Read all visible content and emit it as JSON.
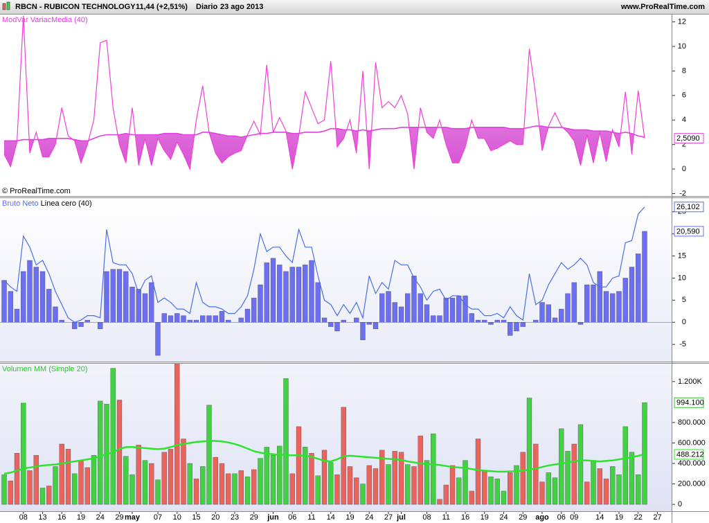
{
  "header": {
    "symbol": "RBCN - RUBICON TECHNOLOGY",
    "quote": "11,44 (+2,51%)",
    "period": "Diario",
    "date": "23 ago 2013",
    "site": "www.ProRealTime.com"
  },
  "watermark": "© ProRealTime.com",
  "chart_data": [
    {
      "type": "line",
      "ylim": [
        -2.2,
        12.6
      ],
      "yticks": [
        12,
        10,
        8,
        6,
        4,
        2,
        0,
        -2
      ],
      "fill_color": "#e34fd5",
      "series": [
        {
          "name": "ModVar",
          "type": "line",
          "color": "#f23fd8",
          "values": [
            1.2,
            0.2,
            2.2,
            12.5,
            1.3,
            3.0,
            1.0,
            1.0,
            2.0,
            5.0,
            2.7,
            2.3,
            0.5,
            2.0,
            4.0,
            10.3,
            10.5,
            5.0,
            2.0,
            0.5,
            5.0,
            0.3,
            2.5,
            0.3,
            2.5,
            1.5,
            0.8,
            2.2,
            1.2,
            0.0,
            4.0,
            6.8,
            3.0,
            1.3,
            0.5,
            1.0,
            1.3,
            1.5,
            2.8,
            3.9,
            2.8,
            8.5,
            3.0,
            4.2,
            3.1,
            0.0,
            2.7,
            6.3,
            5.0,
            3.7,
            4.0,
            8.8,
            1.8,
            2.5,
            4.0,
            1.3,
            8.0,
            0.0,
            8.7,
            5.0,
            5.5,
            5.0,
            6.0,
            4.5,
            0.0,
            5.0,
            3.0,
            2.5,
            4.0,
            2.0,
            0.5,
            0.5,
            1.8,
            4.0,
            2.5,
            2.5,
            1.5,
            1.7,
            2.0,
            2.3,
            2.0,
            2.0,
            9.8,
            6.0,
            1.5,
            3.5,
            4.6,
            3.5,
            3.0,
            2.3,
            0.3,
            2.8,
            0.5,
            3.0,
            0.6,
            3.2,
            1.8,
            6.3,
            1.2,
            6.4,
            2.509,
            null,
            null
          ],
          "value_labels": {
            "100": "2,5090"
          }
        },
        {
          "name": "VariacMedia (40)",
          "type": "line",
          "color": "#e33ee0",
          "values": [
            2.3,
            2.3,
            2.3,
            2.4,
            2.4,
            2.4,
            2.4,
            2.5,
            2.5,
            2.5,
            2.5,
            2.4,
            2.3,
            2.3,
            2.5,
            2.7,
            2.8,
            2.8,
            2.8,
            2.9,
            2.8,
            2.8,
            2.8,
            2.8,
            2.8,
            2.9,
            2.9,
            2.9,
            2.8,
            2.8,
            2.8,
            3.0,
            3.0,
            2.9,
            2.8,
            2.7,
            2.7,
            2.6,
            2.7,
            2.8,
            2.9,
            2.9,
            3.0,
            3.0,
            3.0,
            2.9,
            2.9,
            3.0,
            3.0,
            3.0,
            3.1,
            3.3,
            3.3,
            3.2,
            3.2,
            3.1,
            3.2,
            3.1,
            3.2,
            3.3,
            3.3,
            3.3,
            3.4,
            3.4,
            3.4,
            3.4,
            3.4,
            3.4,
            3.4,
            3.4,
            3.3,
            3.3,
            3.3,
            3.4,
            3.4,
            3.4,
            3.4,
            3.4,
            3.4,
            3.3,
            3.3,
            3.3,
            3.4,
            3.5,
            3.5,
            3.4,
            3.4,
            3.4,
            3.3,
            3.2,
            3.2,
            3.2,
            3.1,
            3.1,
            3.1,
            3.0,
            2.9,
            3.0,
            2.9,
            2.7,
            2.6,
            null,
            null
          ]
        }
      ]
    },
    {
      "type": "bar",
      "ylim": [
        -8.9,
        28.1
      ],
      "yticks": [
        25,
        20,
        15,
        10,
        5,
        0,
        -5
      ],
      "reference_line": {
        "name": "Linea cero (40)",
        "value": 0,
        "color": "#000000"
      },
      "series": [
        {
          "name": "Bruto",
          "type": "bar",
          "color": "#6b6ff0",
          "values": [
            9.5,
            7,
            3,
            11.5,
            14,
            12.5,
            11.5,
            7.5,
            3.5,
            0.5,
            0,
            -1.5,
            -1,
            0.5,
            0,
            -1.5,
            11.5,
            12,
            12,
            11.5,
            8,
            7.5,
            6.5,
            9,
            -7.5,
            2,
            1.5,
            2,
            1.5,
            0.5,
            0.5,
            1.5,
            1.5,
            1.5,
            2.5,
            0.5,
            0,
            1,
            3,
            5.5,
            8.5,
            13.5,
            14.5,
            13,
            11.5,
            12.5,
            12.5,
            13,
            14,
            9,
            1,
            -1,
            -2,
            0.5,
            0,
            1,
            -4,
            -0.5,
            -1.5,
            6.5,
            7,
            4.5,
            3.5,
            6.5,
            10.5,
            6.5,
            4,
            1.5,
            1.5,
            5.5,
            5.5,
            6,
            6,
            2,
            0.5,
            0.5,
            -0.5,
            0.5,
            0.5,
            -3,
            -2,
            -1,
            0,
            0.5,
            4.5,
            4,
            1,
            3,
            6.5,
            9,
            -0.5,
            8.5,
            8.5,
            11.5,
            7,
            6.5,
            7,
            10,
            12.5,
            15.5,
            20.59,
            null,
            null
          ],
          "value_labels": {
            "100": "20,590"
          }
        },
        {
          "name": "Neto",
          "type": "line",
          "color": "#4a6ee8",
          "values": [
            9.5,
            8,
            7,
            19.5,
            17,
            13,
            14,
            11,
            7,
            4,
            1,
            0,
            0.5,
            1.5,
            1.5,
            1,
            21,
            13.5,
            13,
            13,
            11,
            6.5,
            9.5,
            10.5,
            4.5,
            5.5,
            4.5,
            3,
            3,
            2,
            9,
            4.5,
            3.5,
            3.5,
            3,
            2,
            2,
            3.5,
            6,
            12,
            20,
            16,
            17,
            17,
            15,
            13.5,
            21,
            17,
            17,
            10.5,
            5,
            4,
            1.5,
            4,
            2,
            4.5,
            1,
            10.5,
            6.5,
            9,
            7.5,
            14,
            13,
            13,
            10,
            8,
            5,
            7,
            7.5,
            5,
            6,
            6,
            4,
            3,
            3,
            1.5,
            1.5,
            2,
            1,
            3.5,
            1.5,
            0.5,
            11,
            4,
            5,
            8.5,
            11,
            13.5,
            12,
            13,
            14.5,
            13,
            9,
            8,
            8,
            10,
            10.5,
            18,
            18.5,
            24.5,
            26.102,
            null,
            null
          ],
          "value_labels": {
            "100": "26,102"
          }
        }
      ]
    },
    {
      "type": "bar",
      "ylim": [
        -67000,
        1375000
      ],
      "yticks": [
        {
          "value": 1200000,
          "label": "1.200K"
        },
        {
          "value": 800000,
          "label": "800.000"
        },
        {
          "value": 600000,
          "label": "600.000"
        },
        {
          "value": 400000,
          "label": "400.000"
        },
        {
          "value": 200000,
          "label": "200.000"
        },
        0
      ],
      "categories": [
        null,
        null,
        null,
        "08",
        null,
        null,
        "13",
        null,
        null,
        "16",
        null,
        null,
        "19",
        null,
        null,
        "24",
        null,
        null,
        "29",
        null,
        "may",
        null,
        null,
        null,
        "07",
        null,
        null,
        "10",
        null,
        null,
        "15",
        null,
        null,
        "20",
        null,
        null,
        "23",
        null,
        null,
        "29",
        null,
        null,
        "jun",
        null,
        null,
        "06",
        null,
        null,
        "11",
        null,
        null,
        "14",
        null,
        null,
        "19",
        null,
        null,
        "24",
        null,
        null,
        "27",
        null,
        "jul",
        null,
        null,
        null,
        "08",
        null,
        null,
        "11",
        null,
        null,
        "16",
        null,
        null,
        "19",
        null,
        null,
        "24",
        null,
        null,
        "29",
        null,
        null,
        "ago",
        null,
        null,
        "06",
        null,
        "09",
        null,
        null,
        null,
        "14",
        null,
        null,
        "19",
        null,
        null,
        "22",
        null,
        null,
        "27"
      ],
      "series": [
        {
          "name": "Volumen",
          "type": "bar",
          "values": [
            290000,
            230000,
            500000,
            990000,
            330000,
            480000,
            160000,
            180000,
            370000,
            590000,
            540000,
            300000,
            430000,
            360000,
            480000,
            1010000,
            980000,
            1330000,
            1020000,
            470000,
            290000,
            580000,
            430000,
            400000,
            240000,
            510000,
            540000,
            1410000,
            640000,
            400000,
            250000,
            370000,
            970000,
            460000,
            400000,
            300000,
            300000,
            330000,
            270000,
            340000,
            450000,
            560000,
            480000,
            570000,
            1230000,
            300000,
            760000,
            560000,
            500000,
            280000,
            530000,
            410000,
            290000,
            950000,
            370000,
            260000,
            200000,
            380000,
            350000,
            530000,
            390000,
            520000,
            510000,
            390000,
            370000,
            670000,
            430000,
            690000,
            50000,
            190000,
            380000,
            260000,
            430000,
            130000,
            640000,
            330000,
            270000,
            250000,
            130000,
            310000,
            380000,
            510000,
            1040000,
            590000,
            220000,
            310000,
            260000,
            740000,
            520000,
            590000,
            780000,
            220000,
            430000,
            350000,
            250000,
            370000,
            290000,
            760000,
            510000,
            290000,
            994100,
            null,
            null
          ],
          "colors": [
            "#44d044",
            "#e8645c",
            "#e8645c",
            "#44d044",
            "#e8645c",
            "#e8645c",
            "#44d044",
            "#e8645c",
            "#44d044",
            "#e8645c",
            "#e8645c",
            "#44d044",
            "#e8645c",
            "#e8645c",
            "#44d044",
            "#44d044",
            "#44d044",
            "#44d044",
            "#e8645c",
            "#44d044",
            "#44d044",
            "#e8645c",
            "#44d044",
            "#e8645c",
            "#44d044",
            "#e8645c",
            "#e8645c",
            "#e8645c",
            "#e8645c",
            "#44d044",
            "#e8645c",
            "#44d044",
            "#44d044",
            "#e8645c",
            "#e8645c",
            "#e8645c",
            "#44d044",
            "#e8645c",
            "#44d044",
            "#e8645c",
            "#44d044",
            "#44d044",
            "#44d044",
            "#44d044",
            "#44d044",
            "#e8645c",
            "#e8645c",
            "#44d044",
            "#e8645c",
            "#44d044",
            "#e8645c",
            "#44d044",
            "#e8645c",
            "#e8645c",
            "#e8645c",
            "#e8645c",
            "#44d044",
            "#e8645c",
            "#e8645c",
            "#e8645c",
            "#44d044",
            "#e8645c",
            "#e8645c",
            "#44d044",
            "#e8645c",
            "#e8645c",
            "#44d044",
            "#44d044",
            "#e8645c",
            "#e8645c",
            "#e8645c",
            "#44d044",
            "#44d044",
            "#e8645c",
            "#e8645c",
            "#e8645c",
            "#44d044",
            "#44d044",
            "#44d044",
            "#e8645c",
            "#44d044",
            "#e8645c",
            "#44d044",
            "#e8645c",
            "#e8645c",
            "#44d044",
            "#44d044",
            "#44d044",
            "#44d044",
            "#e8645c",
            "#44d044",
            "#e8645c",
            "#44d044",
            "#e8645c",
            "#e8645c",
            "#44d044",
            "#44d044",
            "#44d044",
            "#44d044",
            "#44d044",
            "#44d044",
            null,
            null
          ],
          "value_labels": {
            "100": "994.100"
          }
        },
        {
          "name": "MM (Simple 20)",
          "type": "line",
          "color": "#2ee32e",
          "values": [
            300000,
            310000,
            330000,
            350000,
            360000,
            370000,
            380000,
            385000,
            390000,
            400000,
            410000,
            420000,
            430000,
            440000,
            450000,
            470000,
            490000,
            510000,
            540000,
            560000,
            560000,
            555000,
            550000,
            545000,
            540000,
            545000,
            560000,
            580000,
            590000,
            600000,
            610000,
            615000,
            620000,
            620000,
            615000,
            605000,
            590000,
            570000,
            545000,
            520000,
            505000,
            495000,
            490000,
            485000,
            480000,
            480000,
            480000,
            475000,
            465000,
            445000,
            425000,
            420000,
            440000,
            470000,
            475000,
            470000,
            465000,
            460000,
            455000,
            450000,
            445000,
            440000,
            435000,
            420000,
            410000,
            400000,
            395000,
            390000,
            385000,
            375000,
            365000,
            360000,
            355000,
            345000,
            335000,
            330000,
            325000,
            320000,
            320000,
            322000,
            325000,
            330000,
            340000,
            350000,
            365000,
            380000,
            390000,
            400000,
            410000,
            420000,
            430000,
            430000,
            425000,
            420000,
            425000,
            430000,
            440000,
            450000,
            460000,
            475000,
            488212,
            null,
            null
          ],
          "value_labels": {
            "100": "488.212"
          }
        }
      ]
    }
  ]
}
